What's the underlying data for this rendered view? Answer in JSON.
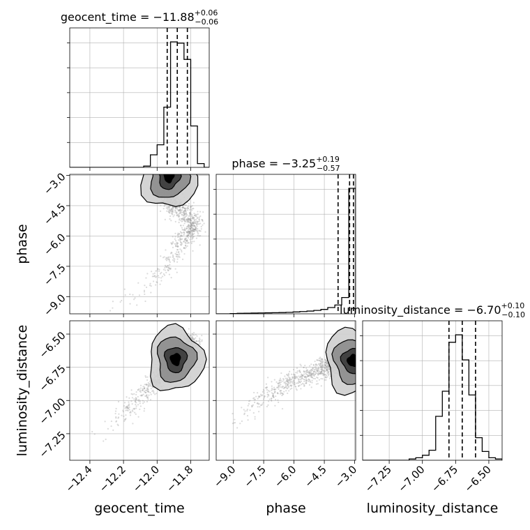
{
  "chart_data": {
    "type": "corner",
    "parameters": [
      "geocent_time",
      "phase",
      "luminosity_distance"
    ],
    "grid": true,
    "marginals": [
      {
        "parameter": "geocent_time",
        "title": {
          "prefix": "geocent_time = ",
          "value": "−11.88",
          "sup": "+0.06",
          "sub": "−0.06"
        },
        "range": [
          -12.52,
          -11.69
        ],
        "quantiles": [
          -11.94,
          -11.88,
          -11.82
        ],
        "bin_edges": [
          -12.52,
          -12.48,
          -12.44,
          -12.4,
          -12.36,
          -12.32,
          -12.28,
          -12.24,
          -12.2,
          -12.16,
          -12.12,
          -12.08,
          -12.04,
          -12.0,
          -11.96,
          -11.92,
          -11.88,
          -11.84,
          -11.8,
          -11.76,
          -11.72,
          -11.69
        ],
        "counts": [
          0,
          0,
          0,
          0,
          0,
          0,
          0,
          0,
          0,
          0,
          0,
          1,
          10,
          18,
          48,
          100,
          99,
          86,
          33,
          3,
          0
        ]
      },
      {
        "parameter": "phase",
        "title": {
          "prefix": "phase = ",
          "value": "−3.25",
          "sup": "+0.19",
          "sub": "−0.57"
        },
        "range": [
          -9.85,
          -2.95
        ],
        "quantiles": [
          -3.82,
          -3.25,
          -3.06
        ],
        "bin_edges": [
          -9.85,
          -9.5,
          -9.16,
          -8.81,
          -8.47,
          -8.12,
          -7.78,
          -7.43,
          -7.09,
          -6.74,
          -6.4,
          -6.05,
          -5.71,
          -5.36,
          -5.02,
          -4.67,
          -4.33,
          -3.98,
          -3.64,
          -3.29,
          -2.95
        ],
        "counts": [
          0,
          0,
          0.2,
          0.4,
          0.5,
          0.6,
          0.7,
          0.8,
          0.9,
          1.0,
          1.2,
          1.5,
          1.8,
          2.2,
          2.7,
          3.5,
          5,
          7,
          13,
          100
        ]
      },
      {
        "parameter": "luminosity_distance",
        "title": {
          "prefix": "luminosity_distance = ",
          "value": "−6.70",
          "sup": "+0.10",
          "sub": "−0.10"
        },
        "range": [
          -7.45,
          -6.4
        ],
        "quantiles": [
          -6.8,
          -6.7,
          -6.6
        ],
        "bin_edges": [
          -7.45,
          -7.4,
          -7.35,
          -7.3,
          -7.25,
          -7.2,
          -7.15,
          -7.1,
          -7.05,
          -7.0,
          -6.95,
          -6.9,
          -6.85,
          -6.8,
          -6.75,
          -6.7,
          -6.65,
          -6.6,
          -6.55,
          -6.5,
          -6.45,
          -6.4
        ],
        "counts": [
          0,
          0,
          0,
          0,
          0,
          0,
          0,
          1,
          2,
          4,
          8,
          35,
          55,
          94,
          100,
          80,
          52,
          18,
          7,
          2,
          1
        ]
      }
    ],
    "pairs": [
      {
        "x": "geocent_time",
        "y": "phase",
        "scatter_trend": [
          [
            -12.4,
            -9.7
          ],
          [
            -12.25,
            -9.5
          ],
          [
            -12.15,
            -9.0
          ],
          [
            -12.05,
            -8.4
          ],
          [
            -11.96,
            -7.7
          ],
          [
            -11.9,
            -7.0
          ],
          [
            -11.85,
            -6.3
          ],
          [
            -11.8,
            -5.8
          ],
          [
            -11.78,
            -5.3
          ],
          [
            -11.85,
            -4.8
          ],
          [
            -11.92,
            -4.3
          ],
          [
            -11.95,
            -3.8
          ],
          [
            -11.93,
            -3.3
          ],
          [
            -11.9,
            -3.0
          ]
        ],
        "peak": [
          -11.93,
          -3.05
        ]
      },
      {
        "x": "geocent_time",
        "y": "luminosity_distance",
        "scatter_trend": [
          [
            -12.4,
            -7.35
          ],
          [
            -12.2,
            -7.1
          ],
          [
            -12.0,
            -6.85
          ],
          [
            -11.9,
            -6.7
          ],
          [
            -11.8,
            -6.55
          ]
        ],
        "peak": [
          -11.89,
          -6.69
        ]
      },
      {
        "x": "phase",
        "y": "luminosity_distance",
        "scatter_trend": [
          [
            -9.5,
            -7.3
          ],
          [
            -8.5,
            -7.1
          ],
          [
            -7.2,
            -6.95
          ],
          [
            -6.0,
            -6.85
          ],
          [
            -4.5,
            -6.75
          ],
          [
            -3.5,
            -6.72
          ],
          [
            -3.0,
            -6.7
          ]
        ],
        "peak": [
          -3.1,
          -6.7
        ]
      }
    ],
    "axes": {
      "geocent_time": {
        "label": "geocent_time",
        "range": [
          -12.52,
          -11.69
        ],
        "ticks": [
          -12.4,
          -12.2,
          -12.0,
          -11.8
        ],
        "tick_labels": [
          "−12.4",
          "−12.2",
          "−12.0",
          "−11.8"
        ]
      },
      "phase": {
        "label": "phase",
        "range": [
          -9.85,
          -2.95
        ],
        "ticks": [
          -9.0,
          -7.5,
          -6.0,
          -4.5,
          -3.0
        ],
        "tick_labels": [
          "−9.0",
          "−7.5",
          "−6.0",
          "−4.5",
          "−3.0"
        ]
      },
      "luminosity_distance": {
        "label": "luminosity_distance",
        "range": [
          -7.45,
          -6.4
        ],
        "ticks": [
          -7.25,
          -7.0,
          -6.75,
          -6.5
        ],
        "tick_labels": [
          "−7.25",
          "−7.00",
          "−6.75",
          "−6.50"
        ]
      }
    },
    "colors": {
      "hist_line": "#000000",
      "grid": "#b0b0b0",
      "scatter": "#999999",
      "contour_fill_outer": "#cfcfcf",
      "contour_fill_mid": "#8c8c8c",
      "contour_fill_inner": "#3a3a3a"
    }
  }
}
